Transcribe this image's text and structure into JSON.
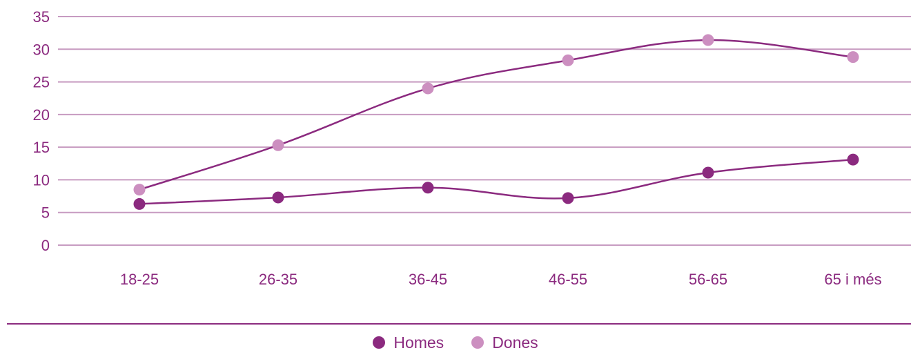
{
  "chart_data": {
    "type": "line",
    "categories": [
      "18-25",
      "26-35",
      "36-45",
      "46-55",
      "56-65",
      "65 i més"
    ],
    "ylim": [
      0,
      35
    ],
    "yticks": [
      0,
      5,
      10,
      15,
      20,
      25,
      30,
      35
    ],
    "grid": true,
    "legend_position": "bottom",
    "series": [
      {
        "name": "Homes",
        "values": [
          6.3,
          7.3,
          8.8,
          7.2,
          11.1,
          13.1
        ]
      },
      {
        "name": "Dones",
        "values": [
          8.5,
          15.3,
          24.0,
          28.3,
          31.4,
          28.8
        ]
      }
    ]
  },
  "colors": {
    "text": "#8b2a7f",
    "grid": "#c79bc1",
    "line": "#8b2a7f",
    "homes_marker": "#8b2a7f",
    "dones_marker": "#cc8fc0"
  },
  "legend": [
    {
      "label": "Homes",
      "color": "#8b2a7f"
    },
    {
      "label": "Dones",
      "color": "#cc8fc0"
    }
  ]
}
